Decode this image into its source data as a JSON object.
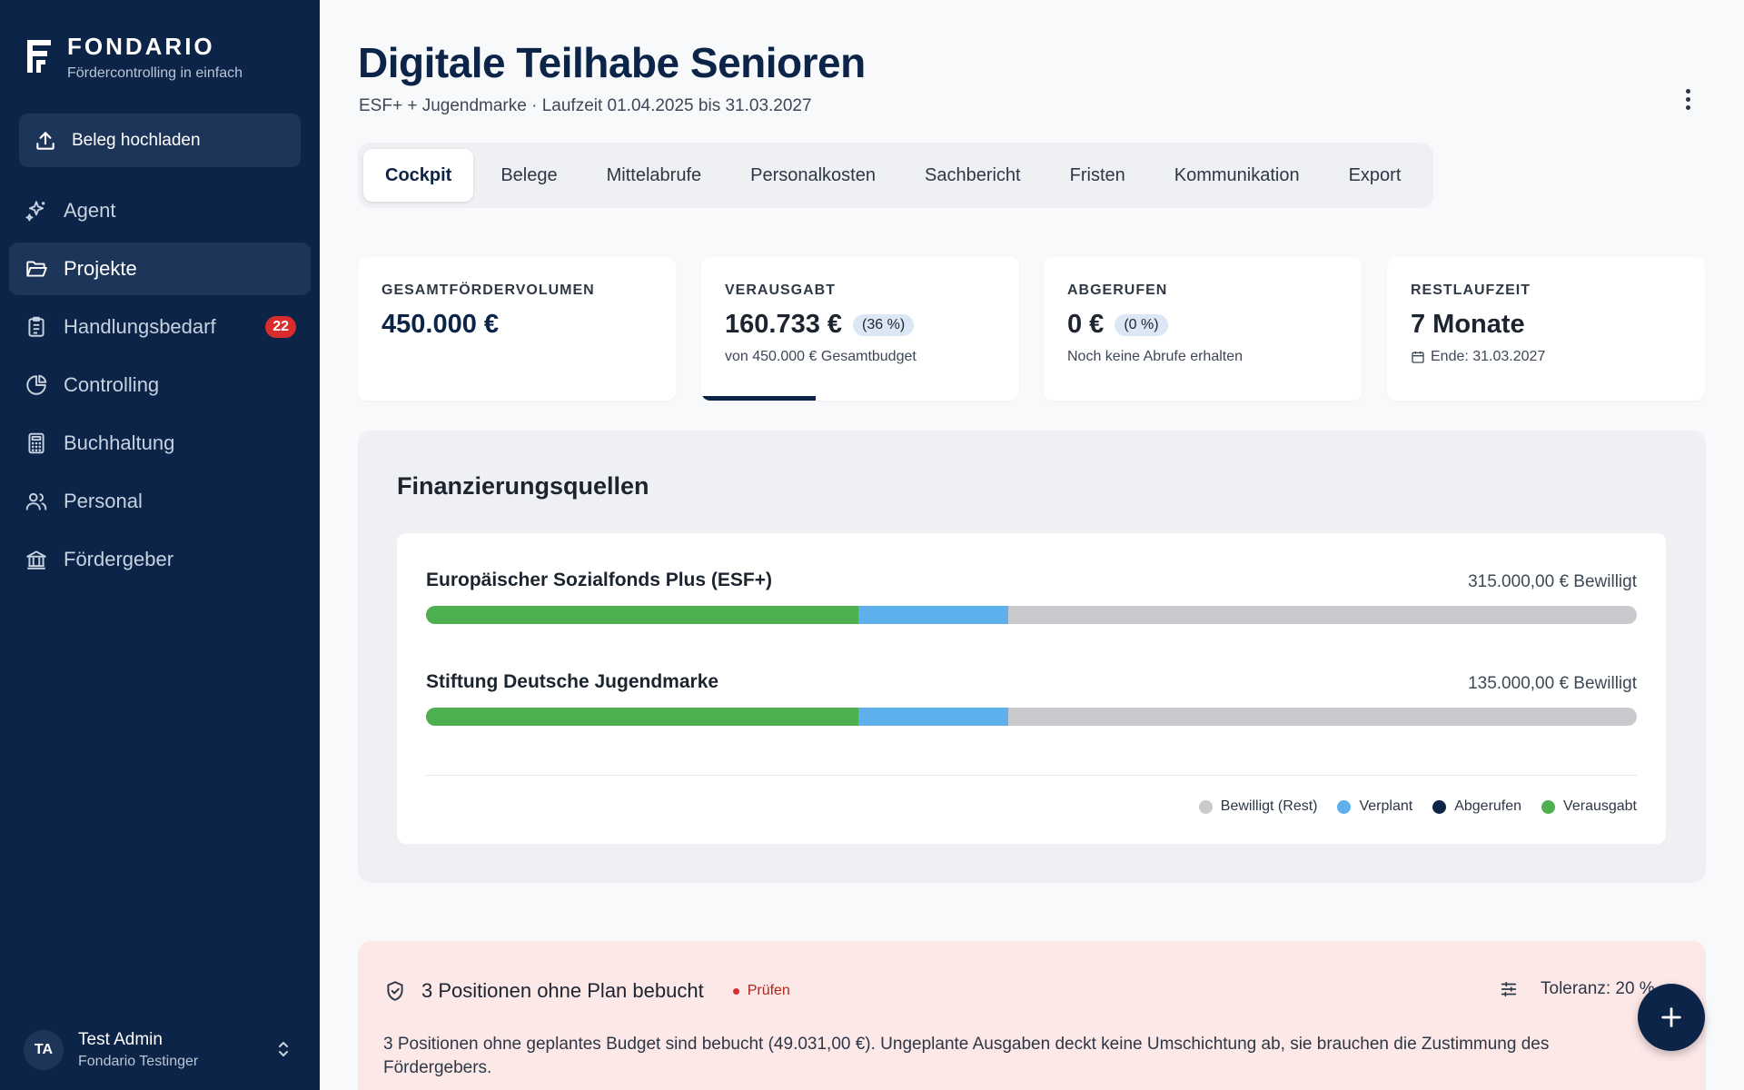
{
  "brand": {
    "name": "FONDARIO",
    "tagline": "Fördercontrolling in einfach"
  },
  "sidebar": {
    "upload_label": "Beleg hochladen",
    "items": [
      {
        "label": "Agent",
        "icon": "sparkles-icon"
      },
      {
        "label": "Projekte",
        "icon": "folder-open-icon",
        "active": true
      },
      {
        "label": "Handlungsbedarf",
        "icon": "clipboard-list-icon",
        "badge": "22"
      },
      {
        "label": "Controlling",
        "icon": "pie-chart-icon"
      },
      {
        "label": "Buchhaltung",
        "icon": "calculator-icon"
      },
      {
        "label": "Personal",
        "icon": "users-icon"
      },
      {
        "label": "Fördergeber",
        "icon": "bank-icon"
      }
    ]
  },
  "user": {
    "initials": "TA",
    "name": "Test Admin",
    "org": "Fondario Testinger"
  },
  "header": {
    "title": "Digitale Teilhabe Senioren",
    "subtitle": "ESF+ + Jugendmarke · Laufzeit 01.04.2025 bis 31.03.2027"
  },
  "tabs": [
    {
      "label": "Cockpit",
      "active": true
    },
    {
      "label": "Belege"
    },
    {
      "label": "Mittelabrufe"
    },
    {
      "label": "Personalkosten"
    },
    {
      "label": "Sachbericht"
    },
    {
      "label": "Fristen"
    },
    {
      "label": "Kommunikation"
    },
    {
      "label": "Export"
    }
  ],
  "kpis": {
    "total": {
      "label": "GESAMTFÖRDERVOLUMEN",
      "value": "450.000 €"
    },
    "spent": {
      "label": "VERAUSGABT",
      "value": "160.733 €",
      "pill": "(36 %)",
      "note": "von 450.000 € Gesamtbudget",
      "progress": 0.36
    },
    "called": {
      "label": "ABGERUFEN",
      "value": "0 €",
      "pill": "(0 %)",
      "note": "Noch keine Abrufe erhalten",
      "progress": 0
    },
    "remaining": {
      "label": "RESTLAUFZEIT",
      "value": "7 Monate",
      "note": "Ende: 31.03.2027",
      "icon": "calendar-icon"
    }
  },
  "financing": {
    "title": "Finanzierungsquellen",
    "sources": [
      {
        "name": "Europäischer Sozialfonds Plus (ESF+)",
        "amount": "315.000,00 € Bewilligt",
        "spent": 0.357,
        "planned": 0.124,
        "called": 0
      },
      {
        "name": "Stiftung Deutsche Jugendmarke",
        "amount": "135.000,00 € Bewilligt",
        "spent": 0.357,
        "planned": 0.124,
        "called": 0
      }
    ],
    "legend": [
      {
        "label": "Bewilligt (Rest)",
        "color": "#c8cace"
      },
      {
        "label": "Verplant",
        "color": "#5db0ec"
      },
      {
        "label": "Abgerufen",
        "color": "#0c2447"
      },
      {
        "label": "Verausgabt",
        "color": "#4caf50"
      }
    ]
  },
  "alert": {
    "title": "3 Positionen ohne Plan bebucht",
    "status": "Prüfen",
    "tolerance": "Toleranz: 20 %",
    "text": "3 Positionen ohne geplantes Budget sind bebucht (49.031,00 €). Ungeplante Ausgaben deckt keine Umschichtung ab, sie brauchen die Zustimmung des Fördergebers."
  },
  "colors": {
    "navy": "#0c2447",
    "spent": "#4caf50",
    "planned": "#5db0ec",
    "rest": "#c8cace",
    "alert_bg": "#fde8e8",
    "badge": "#d92d2d"
  }
}
